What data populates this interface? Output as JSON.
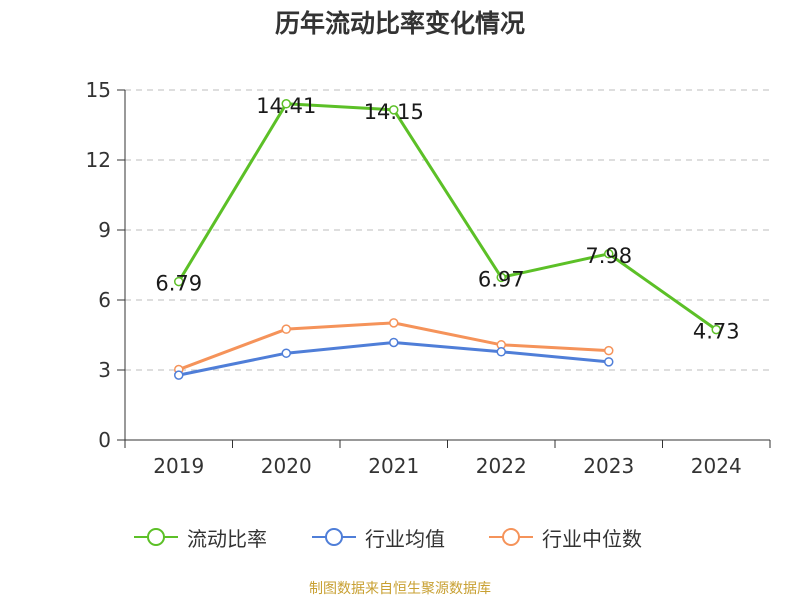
{
  "title": "历年流动比率变化情况",
  "source": "制图数据来自恒生聚源数据库",
  "colors": {
    "series1": "#5cc027",
    "series2": "#4f7ed8",
    "series3": "#f5935a",
    "grid": "#bdbdbd",
    "axis": "#333333"
  },
  "chart_data": {
    "type": "line",
    "x": [
      "2019",
      "2020",
      "2021",
      "2022",
      "2023",
      "2024"
    ],
    "ylim": [
      0,
      15
    ],
    "yticks": [
      0,
      3,
      6,
      9,
      12,
      15
    ],
    "grid": true,
    "legend_position": "bottom",
    "series": [
      {
        "name": "流动比率",
        "values": [
          6.79,
          14.41,
          14.15,
          6.97,
          7.98,
          4.73
        ],
        "labels": [
          "6.79",
          "14.41",
          "14.15",
          "6.97",
          "7.98",
          "4.73"
        ]
      },
      {
        "name": "行业均值",
        "values": [
          2.78,
          3.72,
          4.18,
          3.78,
          3.35,
          null
        ]
      },
      {
        "name": "行业中位数",
        "values": [
          3.02,
          4.75,
          5.02,
          4.08,
          3.83,
          null
        ]
      }
    ]
  }
}
